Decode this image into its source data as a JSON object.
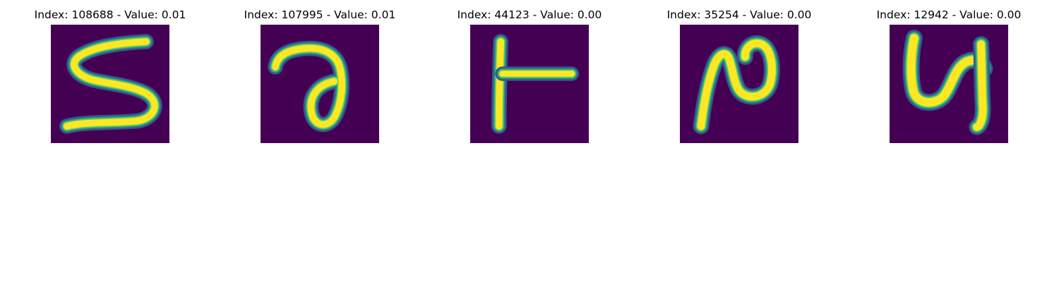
{
  "colors": {
    "background": "#440154",
    "stroke_core": "#fde725",
    "stroke_mid": "#5ec962",
    "stroke_edge": "#21918c",
    "stroke_fringe": "#3b528b"
  },
  "panels": [
    {
      "title": "Index: 108688 - Value: 0.01",
      "glyph": "digit-5-stroke"
    },
    {
      "title": "Index: 107995 - Value: 0.01",
      "glyph": "loop-stroke"
    },
    {
      "title": "Index: 44123 - Value: 0.00",
      "glyph": "t-bar-stroke"
    },
    {
      "title": "Index: 35254 - Value: 0.00",
      "glyph": "n-hook-stroke"
    },
    {
      "title": "Index: 12942 - Value: 0.00",
      "glyph": "u-curl-stroke"
    }
  ]
}
